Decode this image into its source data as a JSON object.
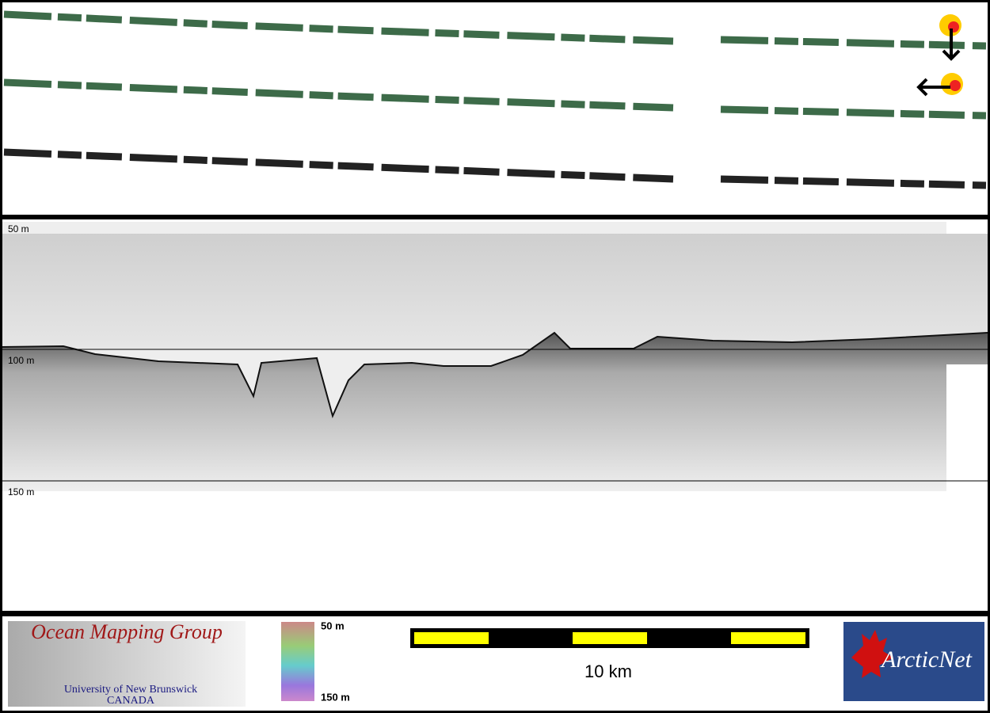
{
  "profile": {
    "depth_labels": [
      "50 m",
      "100 m",
      "150 m"
    ]
  },
  "footer": {
    "logo": {
      "title": "Ocean Mapping Group",
      "line1": "University of New Brunswick",
      "line2": "CANADA"
    },
    "colorbar": {
      "top": "50 m",
      "bottom": "150 m"
    },
    "scale": "10 km",
    "partner": "ArcticNet"
  }
}
